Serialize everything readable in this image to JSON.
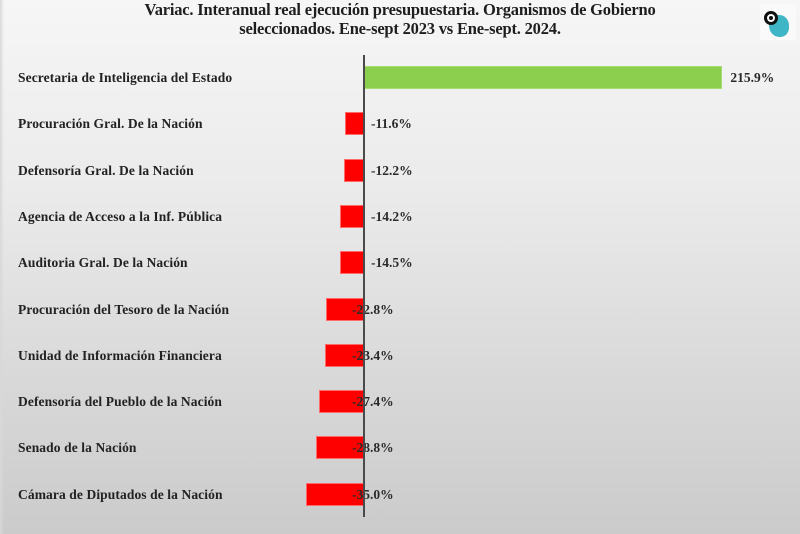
{
  "title": {
    "line1": "Variac. Interanual real ejecución presupuestaria. Organismos de Gobierno",
    "line2": "seleccionados. Ene-sept 2023 vs Ene-sept. 2024."
  },
  "logo": {
    "icon": "target-logo-icon"
  },
  "colors": {
    "positive": "#8cce4e",
    "negative": "#ff0000",
    "axis": "#4a4a4a"
  },
  "chart_data": {
    "type": "bar",
    "orientation": "horizontal",
    "title": "Variac. Interanual real ejecución presupuestaria. Organismos de Gobierno seleccionados. Ene-sept 2023 vs Ene-sept. 2024.",
    "xlabel": "",
    "ylabel": "",
    "grid": false,
    "legend": null,
    "categories": [
      "Secretaria de Inteligencia del Estado",
      "Procuración Gral. De la Nación",
      "Defensoría Gral. De la Nación",
      "Agencia de Acceso a la Inf. Pública",
      "Auditoria Gral. De la Nación",
      "Procuración del Tesoro de la Nación",
      "Unidad de Información Financiera",
      "Defensoría del Pueblo de la Nación",
      "Senado de la Nación",
      "Cámara de Diputados de la Nación"
    ],
    "values": [
      215.9,
      -11.6,
      -12.2,
      -14.2,
      -14.5,
      -22.8,
      -23.4,
      -27.4,
      -28.8,
      -35.0
    ],
    "labels": [
      "215.9%",
      "-11.6%",
      "-12.2%",
      "-14.2%",
      "-14.5%",
      "-22.8%",
      "-23.4%",
      "-27.4%",
      "-28.8%",
      "-35.0%"
    ],
    "unit": "%"
  }
}
